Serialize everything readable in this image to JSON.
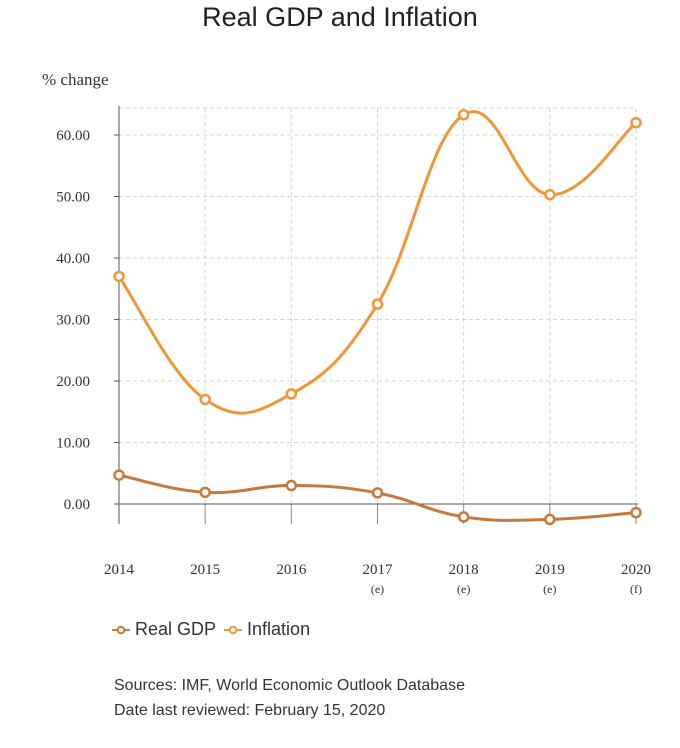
{
  "chart_data": {
    "type": "line",
    "title": "Real GDP and Inflation",
    "ylabel": "% change",
    "categories": [
      "2014",
      "2015",
      "2016",
      "2017",
      "2018",
      "2019",
      "2020"
    ],
    "category_notes": [
      "",
      "",
      "",
      "(e)",
      "(e)",
      "(e)",
      "(f)"
    ],
    "ylim": [
      -3,
      65
    ],
    "yticks": [
      "0.00",
      "10.00",
      "20.00",
      "30.00",
      "40.00",
      "50.00",
      "60.00"
    ],
    "grid": true,
    "legend_position": "bottom-left",
    "series": [
      {
        "name": "Real GDP",
        "color": "#c8783a",
        "values": [
          4.7,
          1.9,
          3.0,
          1.8,
          -2.1,
          -2.5,
          -1.4
        ]
      },
      {
        "name": "Inflation",
        "color": "#f19537",
        "values": [
          37.0,
          17.0,
          17.9,
          32.5,
          63.3,
          50.3,
          62.0
        ]
      }
    ]
  },
  "legend": {
    "gdp_label": "Real GDP",
    "inflation_label": "Inflation"
  },
  "footer": {
    "sources": "Sources: IMF, World Economic Outlook Database",
    "reviewed": "Date last reviewed: February 15, 2020"
  }
}
